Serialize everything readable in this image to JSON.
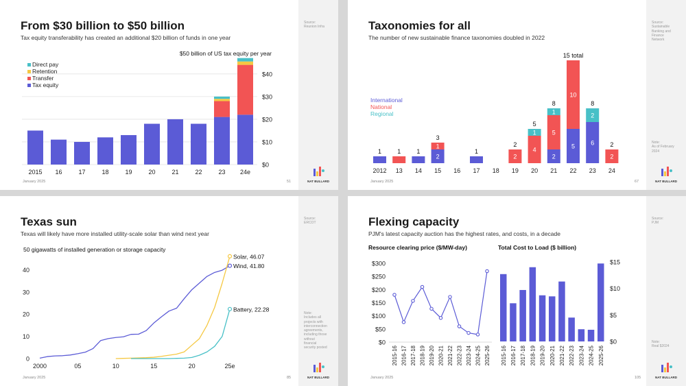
{
  "colors": {
    "tax_equity": "#5b5bd6",
    "transfer": "#f25454",
    "retention": "#f5c842",
    "direct_pay": "#48c0c7",
    "international": "#5b5bd6",
    "national": "#f25454",
    "regional": "#48c0c7",
    "solar": "#f5c842",
    "wind": "#5b5bd6",
    "battery": "#48c0c7"
  },
  "logo_text": "NAT BULLARD",
  "slides": [
    {
      "title": "From $30 billion to $50 billion",
      "subtitle": "Tax equity transferability has created an additional $20 billion of funds in one year",
      "footer": "January 2025",
      "page": "51",
      "source": "Source:\nReunion Infra",
      "note": ""
    },
    {
      "title": "Taxonomies for all",
      "subtitle": "The number of new sustainable finance taxonomies doubled in 2022",
      "footer": "January 2025",
      "page": "67",
      "source": "Source:\nSustainable\nBanking and\nFinance\nNetwork",
      "note": "Note:\nAs of February\n2024"
    },
    {
      "title": "Texas sun",
      "subtitle": "Texas will likely have more installed utility-scale solar than wind next year",
      "footer": "January 2025",
      "page": "85",
      "source": "Source:\nERCOT",
      "note": "Note:\nIncludes all\nprojects with\ninterconnection\nagreements,\nincluding those\nwithout\nfinancial\nsecurity posted"
    },
    {
      "title": "Flexing capacity",
      "subtitle": "PJM's latest capacity auction has the highest rates, and costs, in a decade",
      "footer": "January 2025",
      "page": "105",
      "source": "Source:\nPJM",
      "note": "Note:\nReal $2024"
    }
  ],
  "chart_data": [
    {
      "type": "bar",
      "stacked": true,
      "title": "$50 billion  of US tax equity per year",
      "categories": [
        "2015",
        "16",
        "17",
        "18",
        "19",
        "20",
        "21",
        "22",
        "23",
        "24e"
      ],
      "series": [
        {
          "name": "Tax equity",
          "values": [
            15,
            11,
            10,
            12,
            13,
            18,
            20,
            18,
            21,
            22
          ]
        },
        {
          "name": "Transfer",
          "values": [
            0,
            0,
            0,
            0,
            0,
            0,
            0,
            0,
            7,
            22
          ]
        },
        {
          "name": "Retention",
          "values": [
            0,
            0,
            0,
            0,
            0,
            0,
            0,
            0,
            1,
            1.5
          ]
        },
        {
          "name": "Direct pay",
          "values": [
            0,
            0,
            0,
            0,
            0,
            0,
            0,
            0,
            1,
            1.5
          ]
        }
      ],
      "legend_order": [
        "Direct pay",
        "Retention",
        "Transfer",
        "Tax equity"
      ],
      "legend": "top-left",
      "ylim": [
        0,
        46
      ],
      "yticks": [
        0,
        10,
        20,
        30,
        40
      ],
      "ytick_labels": [
        "$0",
        "$10",
        "$20",
        "$30",
        "$40"
      ],
      "grid": "horizontal"
    },
    {
      "type": "bar",
      "stacked": true,
      "categories": [
        "2012",
        "13",
        "14",
        "15",
        "16",
        "17",
        "18",
        "19",
        "20",
        "21",
        "22",
        "23",
        "24"
      ],
      "series": [
        {
          "name": "International",
          "values": [
            1,
            0,
            1,
            2,
            0,
            1,
            0,
            0,
            0,
            2,
            5,
            6,
            0
          ]
        },
        {
          "name": "National",
          "values": [
            0,
            1,
            0,
            1,
            0,
            0,
            0,
            2,
            4,
            5,
            10,
            0,
            2
          ]
        },
        {
          "name": "Regional",
          "values": [
            0,
            0,
            0,
            0,
            0,
            0,
            0,
            0,
            1,
            1,
            0,
            2,
            0
          ]
        }
      ],
      "totals": [
        "1",
        "1",
        "1",
        "3",
        "",
        "1",
        "",
        "2",
        "5",
        "8",
        "15 total",
        "8",
        "2"
      ],
      "legend": "left",
      "ylim": [
        0,
        15
      ]
    },
    {
      "type": "line",
      "title": "50 gigawatts of installed generation or storage capacity",
      "x": [
        2000,
        2001,
        2002,
        2003,
        2004,
        2005,
        2006,
        2007,
        2008,
        2009,
        2010,
        2011,
        2012,
        2013,
        2014,
        2015,
        2016,
        2017,
        2018,
        2019,
        2020,
        2021,
        2022,
        2023,
        2024,
        2025
      ],
      "xticks": [
        2000,
        2005,
        2010,
        2015,
        2020,
        2025
      ],
      "xtick_labels": [
        "2000",
        "05",
        "10",
        "15",
        "20",
        "25e"
      ],
      "series": [
        {
          "name": "Wind",
          "values": [
            0.2,
            0.9,
            1.2,
            1.3,
            1.6,
            2.2,
            2.9,
            4.5,
            8.1,
            9.0,
            9.5,
            9.8,
            10.9,
            11.0,
            12.6,
            16.0,
            18.8,
            21.4,
            22.7,
            27.0,
            31.0,
            34.0,
            37.0,
            38.8,
            39.8,
            41.8
          ],
          "end_label": "Wind, 41.80"
        },
        {
          "name": "Solar",
          "values": [
            0,
            0,
            0,
            0,
            0,
            0,
            0,
            0,
            0,
            0,
            0,
            0.1,
            0.2,
            0.3,
            0.4,
            0.6,
            1.0,
            1.5,
            2.0,
            3.0,
            6.0,
            9.0,
            15.0,
            23.0,
            34.0,
            46.07
          ],
          "end_label": "Solar, 46.07"
        },
        {
          "name": "Battery",
          "values": [
            0,
            0,
            0,
            0,
            0,
            0,
            0,
            0,
            0,
            0,
            0,
            0,
            0,
            0,
            0,
            0,
            0,
            0,
            0.1,
            0.2,
            0.5,
            1.5,
            3.0,
            5.5,
            10.0,
            22.28
          ],
          "end_label": "Battery, 22.28"
        }
      ],
      "ylim": [
        0,
        46
      ],
      "yticks": [
        0,
        10,
        20,
        30,
        40
      ],
      "grid": "none"
    },
    {
      "type": "line",
      "title": "Resource clearing price ($/MW-day)",
      "categories": [
        "2015-16",
        "2016-17",
        "2017-18",
        "2018-19",
        "2019-20",
        "2020-21",
        "2021-22",
        "2022-23",
        "2023-24",
        "2024-25",
        "2025-26"
      ],
      "values": [
        180,
        76,
        157,
        210,
        127,
        92,
        172,
        60,
        35,
        29,
        270
      ],
      "ylim": [
        0,
        300
      ],
      "yticks": [
        0,
        50,
        100,
        150,
        200,
        250,
        300
      ],
      "ytick_labels": [
        "$0",
        "$50",
        "$100",
        "$150",
        "$200",
        "$250",
        "$300"
      ]
    },
    {
      "type": "bar",
      "title": "Total Cost to Load ($ billion)",
      "categories": [
        "2015-16",
        "2016-17",
        "2017-18",
        "2018-19",
        "2019-20",
        "2020-21",
        "2021-22",
        "2022-23",
        "2023-24",
        "2024-25",
        "2025-26"
      ],
      "values": [
        12.7,
        7.2,
        9.7,
        14.0,
        8.7,
        8.5,
        11.3,
        4.5,
        2.3,
        2.2,
        14.7
      ],
      "ylim": [
        0,
        15
      ],
      "yticks": [
        0,
        5,
        10,
        15
      ],
      "ytick_labels": [
        "$0",
        "$5",
        "$10",
        "$15"
      ]
    }
  ]
}
